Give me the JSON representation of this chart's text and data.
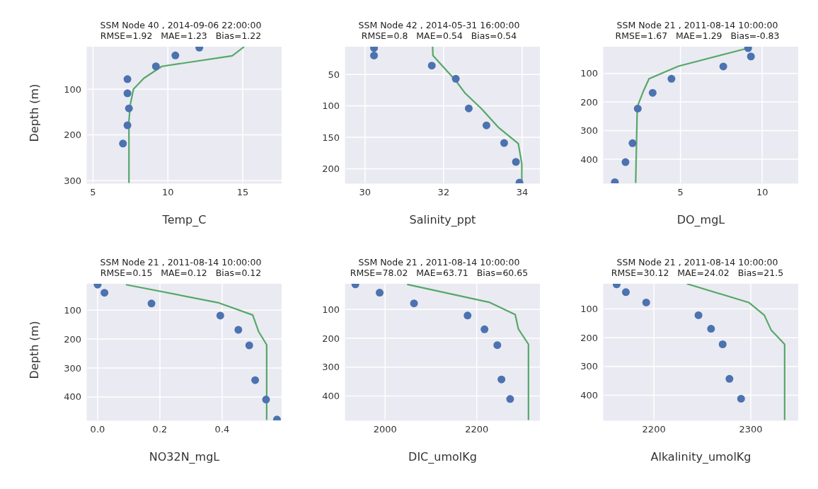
{
  "chart_data": [
    {
      "type": "scatter",
      "title": "SSM Node 40 , 2014-09-06 22:00:00",
      "subtitle": "RMSE=1.92   MAE=1.23   Bias=1.22",
      "xlabel": "Temp_C",
      "ylabel": "Depth (m)",
      "xlim": [
        4.6,
        17.6
      ],
      "ylim": [
        306,
        7
      ],
      "xticks": [
        5,
        10,
        15
      ],
      "yticks": [
        100,
        200,
        300
      ],
      "grid": true,
      "series": [
        {
          "type": "scatter",
          "marker": "circle",
          "color": "#4c72b0",
          "x": [
            12.1,
            10.5,
            9.2,
            7.3,
            7.3,
            7.4,
            7.3,
            7.0
          ],
          "values": [
            9,
            26,
            50,
            78,
            109,
            142,
            179,
            219
          ]
        },
        {
          "type": "line",
          "marker": "none",
          "color": "#55a868",
          "x": [
            15.1,
            14.3,
            9.6,
            8.4,
            7.7,
            7.5,
            7.4,
            7.4
          ],
          "values": [
            7,
            27,
            50,
            76,
            100,
            132,
            169,
            306
          ]
        }
      ]
    },
    {
      "type": "scatter",
      "title": "SSM Node 42 , 2014-05-31 16:00:00",
      "subtitle": "RMSE=0.8   MAE=0.54   Bias=0.54",
      "xlabel": "Salinity_ppt",
      "xlim": [
        29.5,
        34.45
      ],
      "ylim": [
        223,
        6
      ],
      "xticks": [
        30,
        32,
        34
      ],
      "yticks": [
        50,
        100,
        150,
        200
      ],
      "grid": true,
      "series": [
        {
          "type": "scatter",
          "marker": "circle",
          "color": "#4c72b0",
          "x": [
            30.23,
            30.23,
            31.7,
            32.31,
            32.64,
            33.09,
            33.54,
            33.84,
            33.93
          ],
          "values": [
            8,
            20,
            36,
            57,
            104,
            131,
            159,
            189,
            222
          ]
        },
        {
          "type": "line",
          "marker": "none",
          "color": "#55a868",
          "x": [
            31.72,
            31.73,
            32.31,
            32.55,
            32.97,
            33.39,
            33.9,
            33.99,
            33.99
          ],
          "values": [
            6,
            20,
            60,
            80,
            105,
            134,
            160,
            192,
            223
          ]
        }
      ]
    },
    {
      "type": "scatter",
      "title": "SSM Node 21 , 2011-08-14 10:00:00",
      "subtitle": "RMSE=1.67   MAE=1.29   Bias=-0.83",
      "xlabel": "DO_mgL",
      "xlim": [
        0.3,
        12.2
      ],
      "ylim": [
        484,
        7
      ],
      "xticks": [
        5,
        10
      ],
      "yticks": [
        100,
        200,
        300,
        400
      ],
      "grid": true,
      "series": [
        {
          "type": "scatter",
          "marker": "circle",
          "color": "#4c72b0",
          "x": [
            9.14,
            9.31,
            7.62,
            4.45,
            3.3,
            2.39,
            2.07,
            1.64,
            0.99
          ],
          "values": [
            12,
            41,
            76,
            119,
            168,
            223,
            344,
            410,
            480
          ]
        },
        {
          "type": "line",
          "marker": "none",
          "color": "#55a868",
          "x": [
            9.14,
            4.88,
            3.08,
            2.72,
            2.36,
            2.26
          ],
          "values": [
            12,
            75,
            119,
            164,
            217,
            484
          ]
        }
      ]
    },
    {
      "type": "scatter",
      "title": "SSM Node 21 , 2011-08-14 10:00:00",
      "subtitle": "RMSE=0.15   MAE=0.12   Bias=0.12",
      "xlabel": "NO32N_mgL",
      "ylabel": "Depth (m)",
      "xlim": [
        -0.034,
        0.591
      ],
      "ylim": [
        481,
        9
      ],
      "xticks": [
        {
          "value": 0,
          "label": "0.0"
        },
        0.2,
        0.4
      ],
      "yticks": [
        100,
        200,
        300,
        400
      ],
      "grid": true,
      "series": [
        {
          "type": "scatter",
          "marker": "circle",
          "color": "#4c72b0",
          "x": [
            0,
            0.022,
            0.173,
            0.394,
            0.452,
            0.487,
            0.506,
            0.541,
            0.576
          ],
          "values": [
            12,
            40,
            77,
            119,
            168,
            222,
            342,
            409,
            478
          ]
        },
        {
          "type": "line",
          "marker": "none",
          "color": "#55a868",
          "x": [
            0.091,
            0.386,
            0.498,
            0.517,
            0.543,
            0.543
          ],
          "values": [
            12,
            74,
            117,
            174,
            220,
            481
          ]
        }
      ]
    },
    {
      "type": "scatter",
      "title": "SSM Node 21 , 2011-08-14 10:00:00",
      "subtitle": "RMSE=78.02   MAE=63.71   Bias=60.65",
      "xlabel": "DIC_umolKg",
      "xlim": [
        1913,
        2338
      ],
      "ylim": [
        485,
        11
      ],
      "xticks": [
        2000,
        2200
      ],
      "yticks": [
        100,
        200,
        300,
        400
      ],
      "grid": true,
      "series": [
        {
          "type": "scatter",
          "marker": "circle",
          "color": "#4c72b0",
          "x": [
            1935,
            1988,
            2063,
            2180,
            2217,
            2245,
            2254,
            2273
          ],
          "values": [
            13,
            42,
            79,
            121,
            169,
            224,
            343,
            411
          ]
        },
        {
          "type": "line",
          "marker": "none",
          "color": "#55a868",
          "x": [
            2048,
            2227,
            2284,
            2291,
            2313,
            2313
          ],
          "values": [
            13,
            75,
            118,
            168,
            221,
            485
          ]
        }
      ]
    },
    {
      "type": "scatter",
      "title": "SSM Node 21 , 2011-08-14 10:00:00",
      "subtitle": "RMSE=30.12   MAE=24.02   Bias=21.5",
      "xlabel": "Alkalinity_umolKg",
      "xlim": [
        2148,
        2349
      ],
      "ylim": [
        487,
        13
      ],
      "xticks": [
        2200,
        2300
      ],
      "yticks": [
        100,
        200,
        300,
        400
      ],
      "grid": true,
      "series": [
        {
          "type": "scatter",
          "marker": "circle",
          "color": "#4c72b0",
          "x": [
            2161.5,
            2171,
            2192,
            2246,
            2259,
            2271,
            2278,
            2290
          ],
          "values": [
            15,
            42,
            78,
            122,
            169,
            223,
            343,
            412
          ]
        },
        {
          "type": "line",
          "marker": "none",
          "color": "#55a868",
          "x": [
            2234,
            2298,
            2314,
            2321,
            2335,
            2335
          ],
          "values": [
            13,
            78,
            122,
            173,
            223,
            487
          ]
        }
      ]
    }
  ]
}
